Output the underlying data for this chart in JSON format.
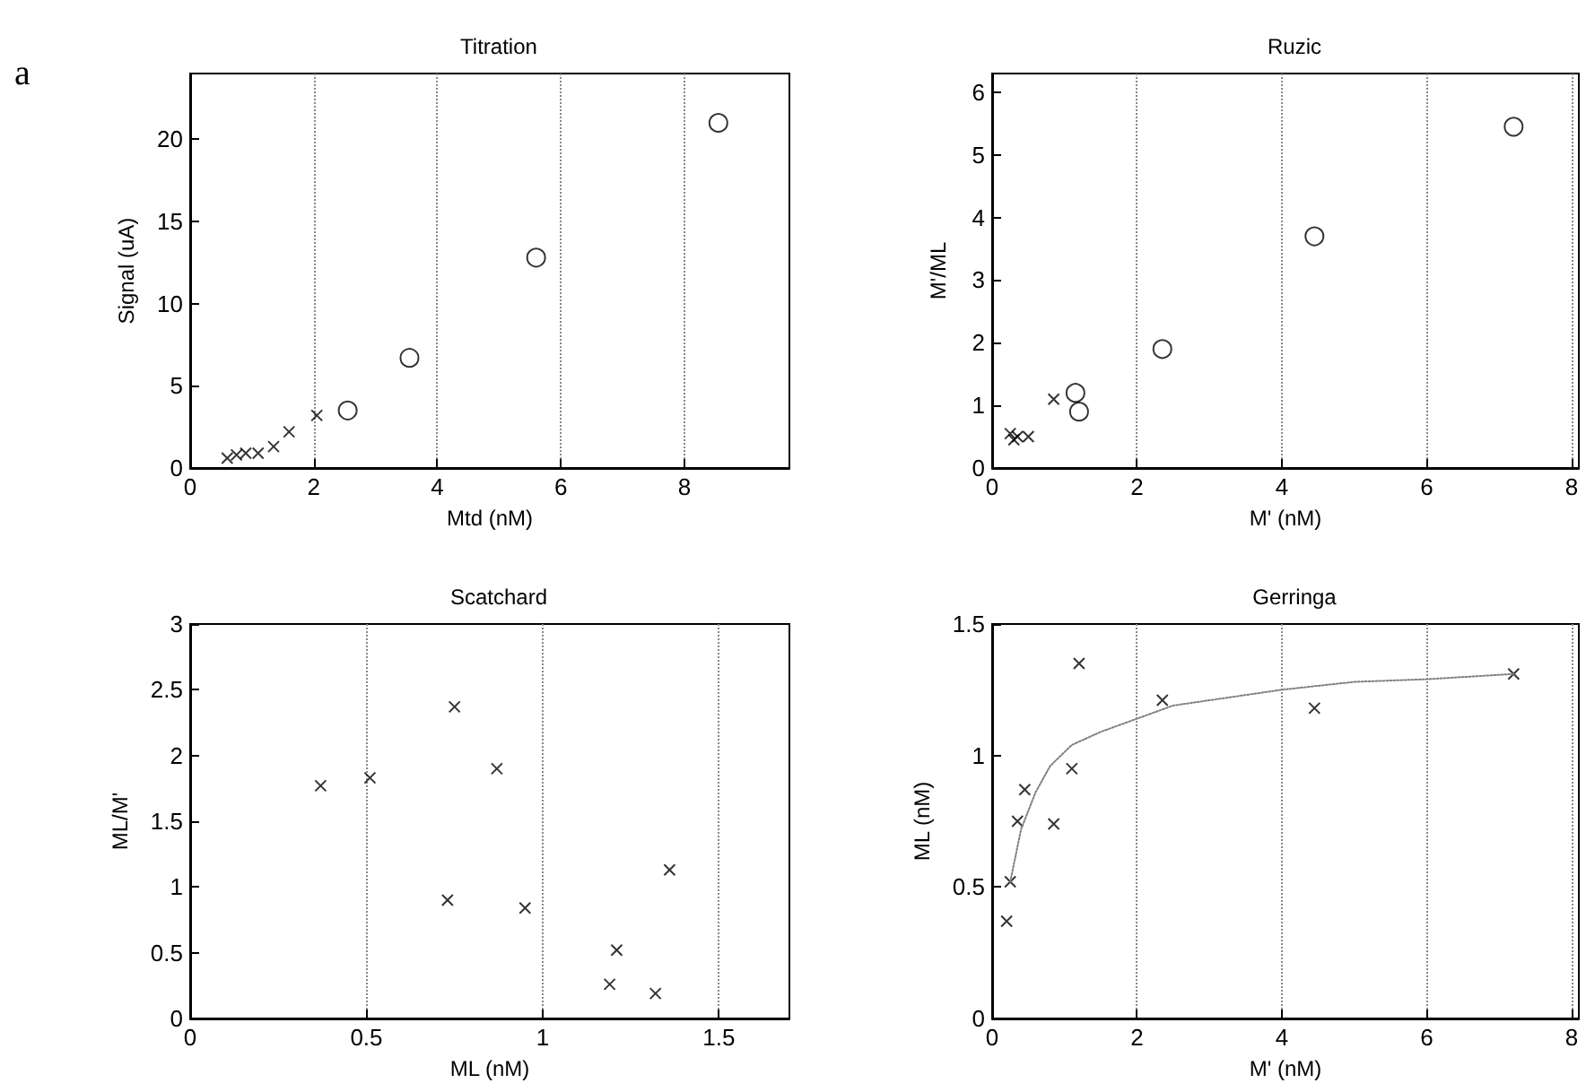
{
  "chart_data": [
    {
      "type": "scatter",
      "title": "Titration",
      "xlabel": "Mtd (nM)",
      "ylabel": "Signal (uA)",
      "annotations": [
        "a"
      ],
      "xlim": [
        0,
        9.7
      ],
      "ylim": [
        0,
        24
      ],
      "xticks": [
        0,
        2,
        4,
        6,
        8
      ],
      "yticks": [
        0,
        5,
        10,
        15,
        20
      ],
      "grid": "x",
      "series": [
        {
          "marker": "cross",
          "color": "#000000",
          "x": [
            0.6,
            0.75,
            0.9,
            1.1,
            1.35,
            1.6,
            2.05
          ],
          "values": [
            0.6,
            0.8,
            0.9,
            0.9,
            1.3,
            2.2,
            3.2
          ]
        },
        {
          "marker": "circle",
          "color": "#000000",
          "x": [
            2.55,
            3.55,
            5.6,
            8.55
          ],
          "values": [
            3.5,
            6.7,
            12.8,
            21
          ]
        }
      ]
    },
    {
      "type": "scatter",
      "title": "Ruzic",
      "xlabel": "M' (nM)",
      "ylabel": "M'/ML",
      "xlim": [
        0,
        8.1
      ],
      "ylim": [
        0,
        6.3
      ],
      "xticks": [
        0,
        2,
        4,
        6,
        8
      ],
      "yticks": [
        0,
        1,
        2,
        3,
        4,
        5,
        6
      ],
      "grid": "x",
      "series": [
        {
          "marker": "cross",
          "color": "#000000",
          "x": [
            0.25,
            0.3,
            0.35,
            0.5,
            0.85
          ],
          "values": [
            0.55,
            0.45,
            0.5,
            0.5,
            1.1
          ]
        },
        {
          "marker": "circle",
          "color": "#000000",
          "x": [
            1.15,
            1.2,
            2.35,
            4.45,
            7.2
          ],
          "values": [
            1.2,
            0.9,
            1.9,
            3.7,
            5.45
          ]
        }
      ]
    },
    {
      "type": "scatter",
      "title": "Scatchard",
      "xlabel": "ML (nM)",
      "ylabel": "ML/M'",
      "xlim": [
        0,
        1.7
      ],
      "ylim": [
        0,
        3
      ],
      "xticks": [
        0,
        0.5,
        1,
        1.5
      ],
      "yticks": [
        0,
        0.5,
        1,
        1.5,
        2,
        2.5,
        3
      ],
      "grid": "x",
      "series": [
        {
          "marker": "cross",
          "color": "#000000",
          "x": [
            0.37,
            0.51,
            0.73,
            0.75,
            0.87,
            0.95,
            1.19,
            1.21,
            1.32,
            1.36
          ],
          "values": [
            1.77,
            1.83,
            0.9,
            2.37,
            1.9,
            0.84,
            0.26,
            0.52,
            0.19,
            1.13
          ]
        }
      ]
    },
    {
      "type": "scatter",
      "title": "Gerringa",
      "xlabel": "M' (nM)",
      "ylabel": "ML (nM)",
      "xlim": [
        0,
        8.1
      ],
      "ylim": [
        0,
        1.5
      ],
      "xticks": [
        0,
        2,
        4,
        6,
        8
      ],
      "yticks": [
        0,
        0.5,
        1,
        1.5
      ],
      "grid": "x",
      "series": [
        {
          "marker": "cross",
          "color": "#000000",
          "x": [
            0.2,
            0.25,
            0.35,
            0.45,
            0.85,
            1.1,
            1.2,
            2.35,
            4.45,
            7.2
          ],
          "values": [
            0.37,
            0.52,
            0.75,
            0.87,
            0.74,
            0.95,
            1.35,
            1.21,
            1.18,
            1.31
          ]
        },
        {
          "type": "line",
          "line_style": "dotted",
          "color": "#808080",
          "x": [
            0.25,
            0.4,
            0.6,
            0.8,
            1.1,
            1.5,
            2,
            2.5,
            3,
            4,
            5,
            6,
            7.2
          ],
          "values": [
            0.52,
            0.72,
            0.86,
            0.96,
            1.04,
            1.09,
            1.14,
            1.19,
            1.21,
            1.25,
            1.28,
            1.29,
            1.31
          ]
        }
      ]
    }
  ]
}
